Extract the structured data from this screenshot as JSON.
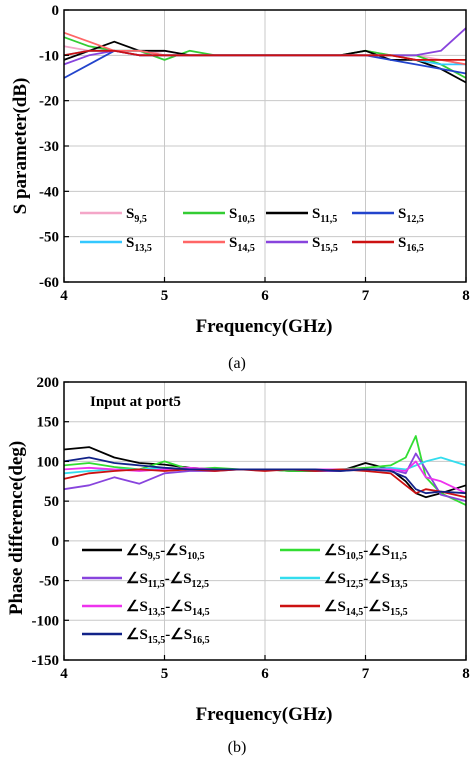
{
  "chart_data": [
    {
      "type": "line",
      "panel_label": "(a)",
      "xlabel": "Frequency(GHz)",
      "ylabel": "S parameter(dB)",
      "xlim": [
        4,
        8
      ],
      "ylim": [
        -60,
        0
      ],
      "xticks": [
        "4",
        "5",
        "6",
        "7",
        "8"
      ],
      "yticks": [
        "0",
        "-10",
        "-20",
        "-30",
        "-40",
        "-50",
        "-60"
      ],
      "grid": true,
      "legend_position": "lower-center",
      "x": [
        4.0,
        4.25,
        4.5,
        4.75,
        5.0,
        5.25,
        5.5,
        5.75,
        6.0,
        6.25,
        6.5,
        6.75,
        7.0,
        7.25,
        7.5,
        7.75,
        8.0
      ],
      "series": [
        {
          "name": "S9,5",
          "label": "S",
          "sub": "9,5",
          "color": "#f4a6c8",
          "values": [
            -8,
            -9,
            -9,
            -10,
            -9,
            -10,
            -10,
            -10,
            -10,
            -10,
            -10,
            -10,
            -9,
            -10,
            -10,
            -11,
            -12
          ]
        },
        {
          "name": "S10,5",
          "label": "S",
          "sub": "10,5",
          "color": "#33cc33",
          "values": [
            -6,
            -8,
            -9,
            -9,
            -11,
            -9,
            -10,
            -10,
            -10,
            -10,
            -10,
            -10,
            -9,
            -10,
            -10,
            -12,
            -15
          ]
        },
        {
          "name": "S11,5",
          "label": "S",
          "sub": "11,5",
          "color": "#000000",
          "values": [
            -11,
            -9,
            -7,
            -9,
            -9,
            -10,
            -10,
            -10,
            -10,
            -10,
            -10,
            -10,
            -9,
            -11,
            -11,
            -13,
            -16
          ]
        },
        {
          "name": "S12,5",
          "label": "S",
          "sub": "12,5",
          "color": "#2244cc",
          "values": [
            -15,
            -12,
            -9,
            -10,
            -10,
            -10,
            -10,
            -10,
            -10,
            -10,
            -10,
            -10,
            -10,
            -11,
            -12,
            -13,
            -14
          ]
        },
        {
          "name": "S13,5",
          "label": "S",
          "sub": "13,5",
          "color": "#33c8ff",
          "values": [
            -10,
            -9,
            -9,
            -9,
            -10,
            -10,
            -10,
            -10,
            -10,
            -10,
            -10,
            -10,
            -10,
            -10,
            -11,
            -12,
            -12
          ]
        },
        {
          "name": "S14,5",
          "label": "S",
          "sub": "14,5",
          "color": "#ff6666",
          "values": [
            -5,
            -7,
            -9,
            -9,
            -10,
            -10,
            -10,
            -10,
            -10,
            -10,
            -10,
            -10,
            -10,
            -10,
            -11,
            -11,
            -12
          ]
        },
        {
          "name": "S15,5",
          "label": "S",
          "sub": "15,5",
          "color": "#8844dd",
          "values": [
            -12,
            -10,
            -9,
            -10,
            -10,
            -10,
            -10,
            -10,
            -10,
            -10,
            -10,
            -10,
            -10,
            -10,
            -10,
            -9,
            -4
          ]
        },
        {
          "name": "S16,5",
          "label": "S",
          "sub": "16,5",
          "color": "#cc1111",
          "values": [
            -10,
            -9,
            -9,
            -10,
            -10,
            -10,
            -10,
            -10,
            -10,
            -10,
            -10,
            -10,
            -10,
            -10,
            -11,
            -11,
            -11
          ]
        }
      ]
    },
    {
      "type": "line",
      "panel_label": "(b)",
      "annotation": "Input at port5",
      "xlabel": "Frequency(GHz)",
      "ylabel": "Phase difference(deg)",
      "xlim": [
        4,
        8
      ],
      "ylim": [
        -150,
        200
      ],
      "xticks": [
        "4",
        "5",
        "6",
        "7",
        "8"
      ],
      "yticks": [
        "200",
        "150",
        "100",
        "50",
        "0",
        "-50",
        "-100",
        "-150"
      ],
      "grid": true,
      "legend_position": "lower-left",
      "x": [
        4.0,
        4.25,
        4.5,
        4.75,
        5.0,
        5.25,
        5.5,
        5.75,
        6.0,
        6.25,
        6.5,
        6.75,
        7.0,
        7.25,
        7.4,
        7.5,
        7.6,
        7.75,
        8.0
      ],
      "series": [
        {
          "name": "∠S9,5-∠S10,5",
          "color": "#000000",
          "parts": [
            [
              "∠S",
              "9,5"
            ],
            [
              "-∠S",
              "10,5"
            ]
          ],
          "values": [
            115,
            118,
            105,
            98,
            96,
            92,
            90,
            90,
            90,
            88,
            88,
            88,
            98,
            90,
            75,
            60,
            55,
            60,
            70
          ]
        },
        {
          "name": "∠S10,5-∠S11,5",
          "color": "#33dd33",
          "parts": [
            [
              "∠S",
              "10,5"
            ],
            [
              "-∠S",
              "11,5"
            ]
          ],
          "values": [
            95,
            98,
            93,
            90,
            100,
            90,
            92,
            90,
            90,
            88,
            88,
            90,
            92,
            95,
            105,
            132,
            80,
            60,
            45
          ]
        },
        {
          "name": "∠S11,5-∠S12,5",
          "color": "#8844dd",
          "parts": [
            [
              "∠S",
              "11,5"
            ],
            [
              "-∠S",
              "12,5"
            ]
          ],
          "values": [
            65,
            70,
            80,
            72,
            85,
            88,
            88,
            90,
            90,
            90,
            88,
            88,
            90,
            90,
            85,
            110,
            90,
            58,
            50
          ]
        },
        {
          "name": "∠S12,5-∠S13,5",
          "color": "#33ddee",
          "parts": [
            [
              "∠S",
              "12,5"
            ],
            [
              "-∠S",
              "13,5"
            ]
          ],
          "values": [
            85,
            88,
            90,
            90,
            92,
            90,
            90,
            90,
            90,
            90,
            90,
            90,
            90,
            92,
            90,
            95,
            100,
            105,
            95
          ]
        },
        {
          "name": "∠S13,5-∠S14,5",
          "color": "#ee33ee",
          "parts": [
            [
              "∠S",
              "13,5"
            ],
            [
              "-∠S",
              "14,5"
            ]
          ],
          "values": [
            90,
            92,
            90,
            88,
            90,
            92,
            90,
            90,
            90,
            90,
            90,
            90,
            90,
            90,
            88,
            100,
            80,
            75,
            60
          ]
        },
        {
          "name": "∠S14,5-∠S15,5",
          "color": "#cc1111",
          "parts": [
            [
              "∠S",
              "14,5"
            ],
            [
              "-∠S",
              "15,5"
            ]
          ],
          "values": [
            78,
            85,
            88,
            90,
            88,
            90,
            88,
            90,
            88,
            90,
            88,
            90,
            88,
            85,
            70,
            60,
            65,
            62,
            55
          ]
        },
        {
          "name": "∠S15,5-∠S16,5",
          "color": "#112288",
          "parts": [
            [
              "∠S",
              "15,5"
            ],
            [
              "-∠S",
              "16,5"
            ]
          ],
          "values": [
            100,
            105,
            98,
            95,
            92,
            90,
            90,
            90,
            90,
            90,
            90,
            88,
            90,
            88,
            80,
            65,
            60,
            62,
            60
          ]
        }
      ]
    }
  ]
}
